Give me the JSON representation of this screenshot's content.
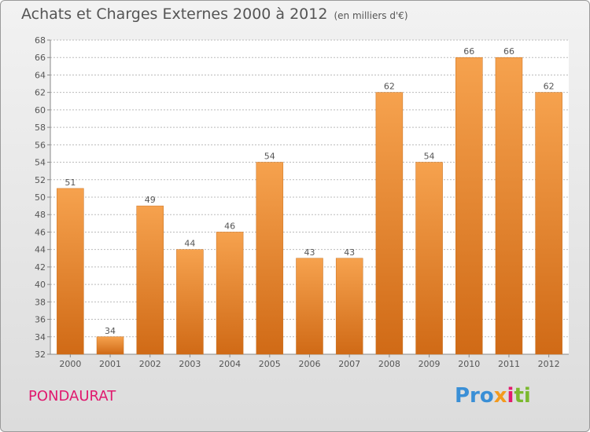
{
  "header": {
    "title": "Achats et Charges Externes 2000 à 2012",
    "unit": "(en milliers d'€)"
  },
  "footer": {
    "town": "PONDAURAT",
    "logo_parts": [
      "Pro",
      "x",
      "i",
      "ti"
    ]
  },
  "colors": {
    "bar_top": "#f6a24e",
    "bar_bottom": "#d06a16",
    "grid": "#bbbbbb",
    "text": "#555555",
    "town": "#e0196e"
  },
  "chart_data": {
    "type": "bar",
    "title": "Achats et Charges Externes 2000 à 2012",
    "subtitle": "(en milliers d'€)",
    "categories": [
      "2000",
      "2001",
      "2002",
      "2003",
      "2004",
      "2005",
      "2006",
      "2007",
      "2008",
      "2009",
      "2010",
      "2011",
      "2012"
    ],
    "values": [
      51,
      34,
      49,
      44,
      46,
      54,
      43,
      43,
      62,
      54,
      66,
      66,
      62
    ],
    "yticks": [
      32,
      34,
      36,
      38,
      40,
      42,
      44,
      46,
      48,
      50,
      52,
      54,
      56,
      58,
      60,
      62,
      64,
      66,
      68
    ],
    "ylim": [
      32,
      68
    ],
    "grid": true,
    "xlabel": "",
    "ylabel": ""
  }
}
